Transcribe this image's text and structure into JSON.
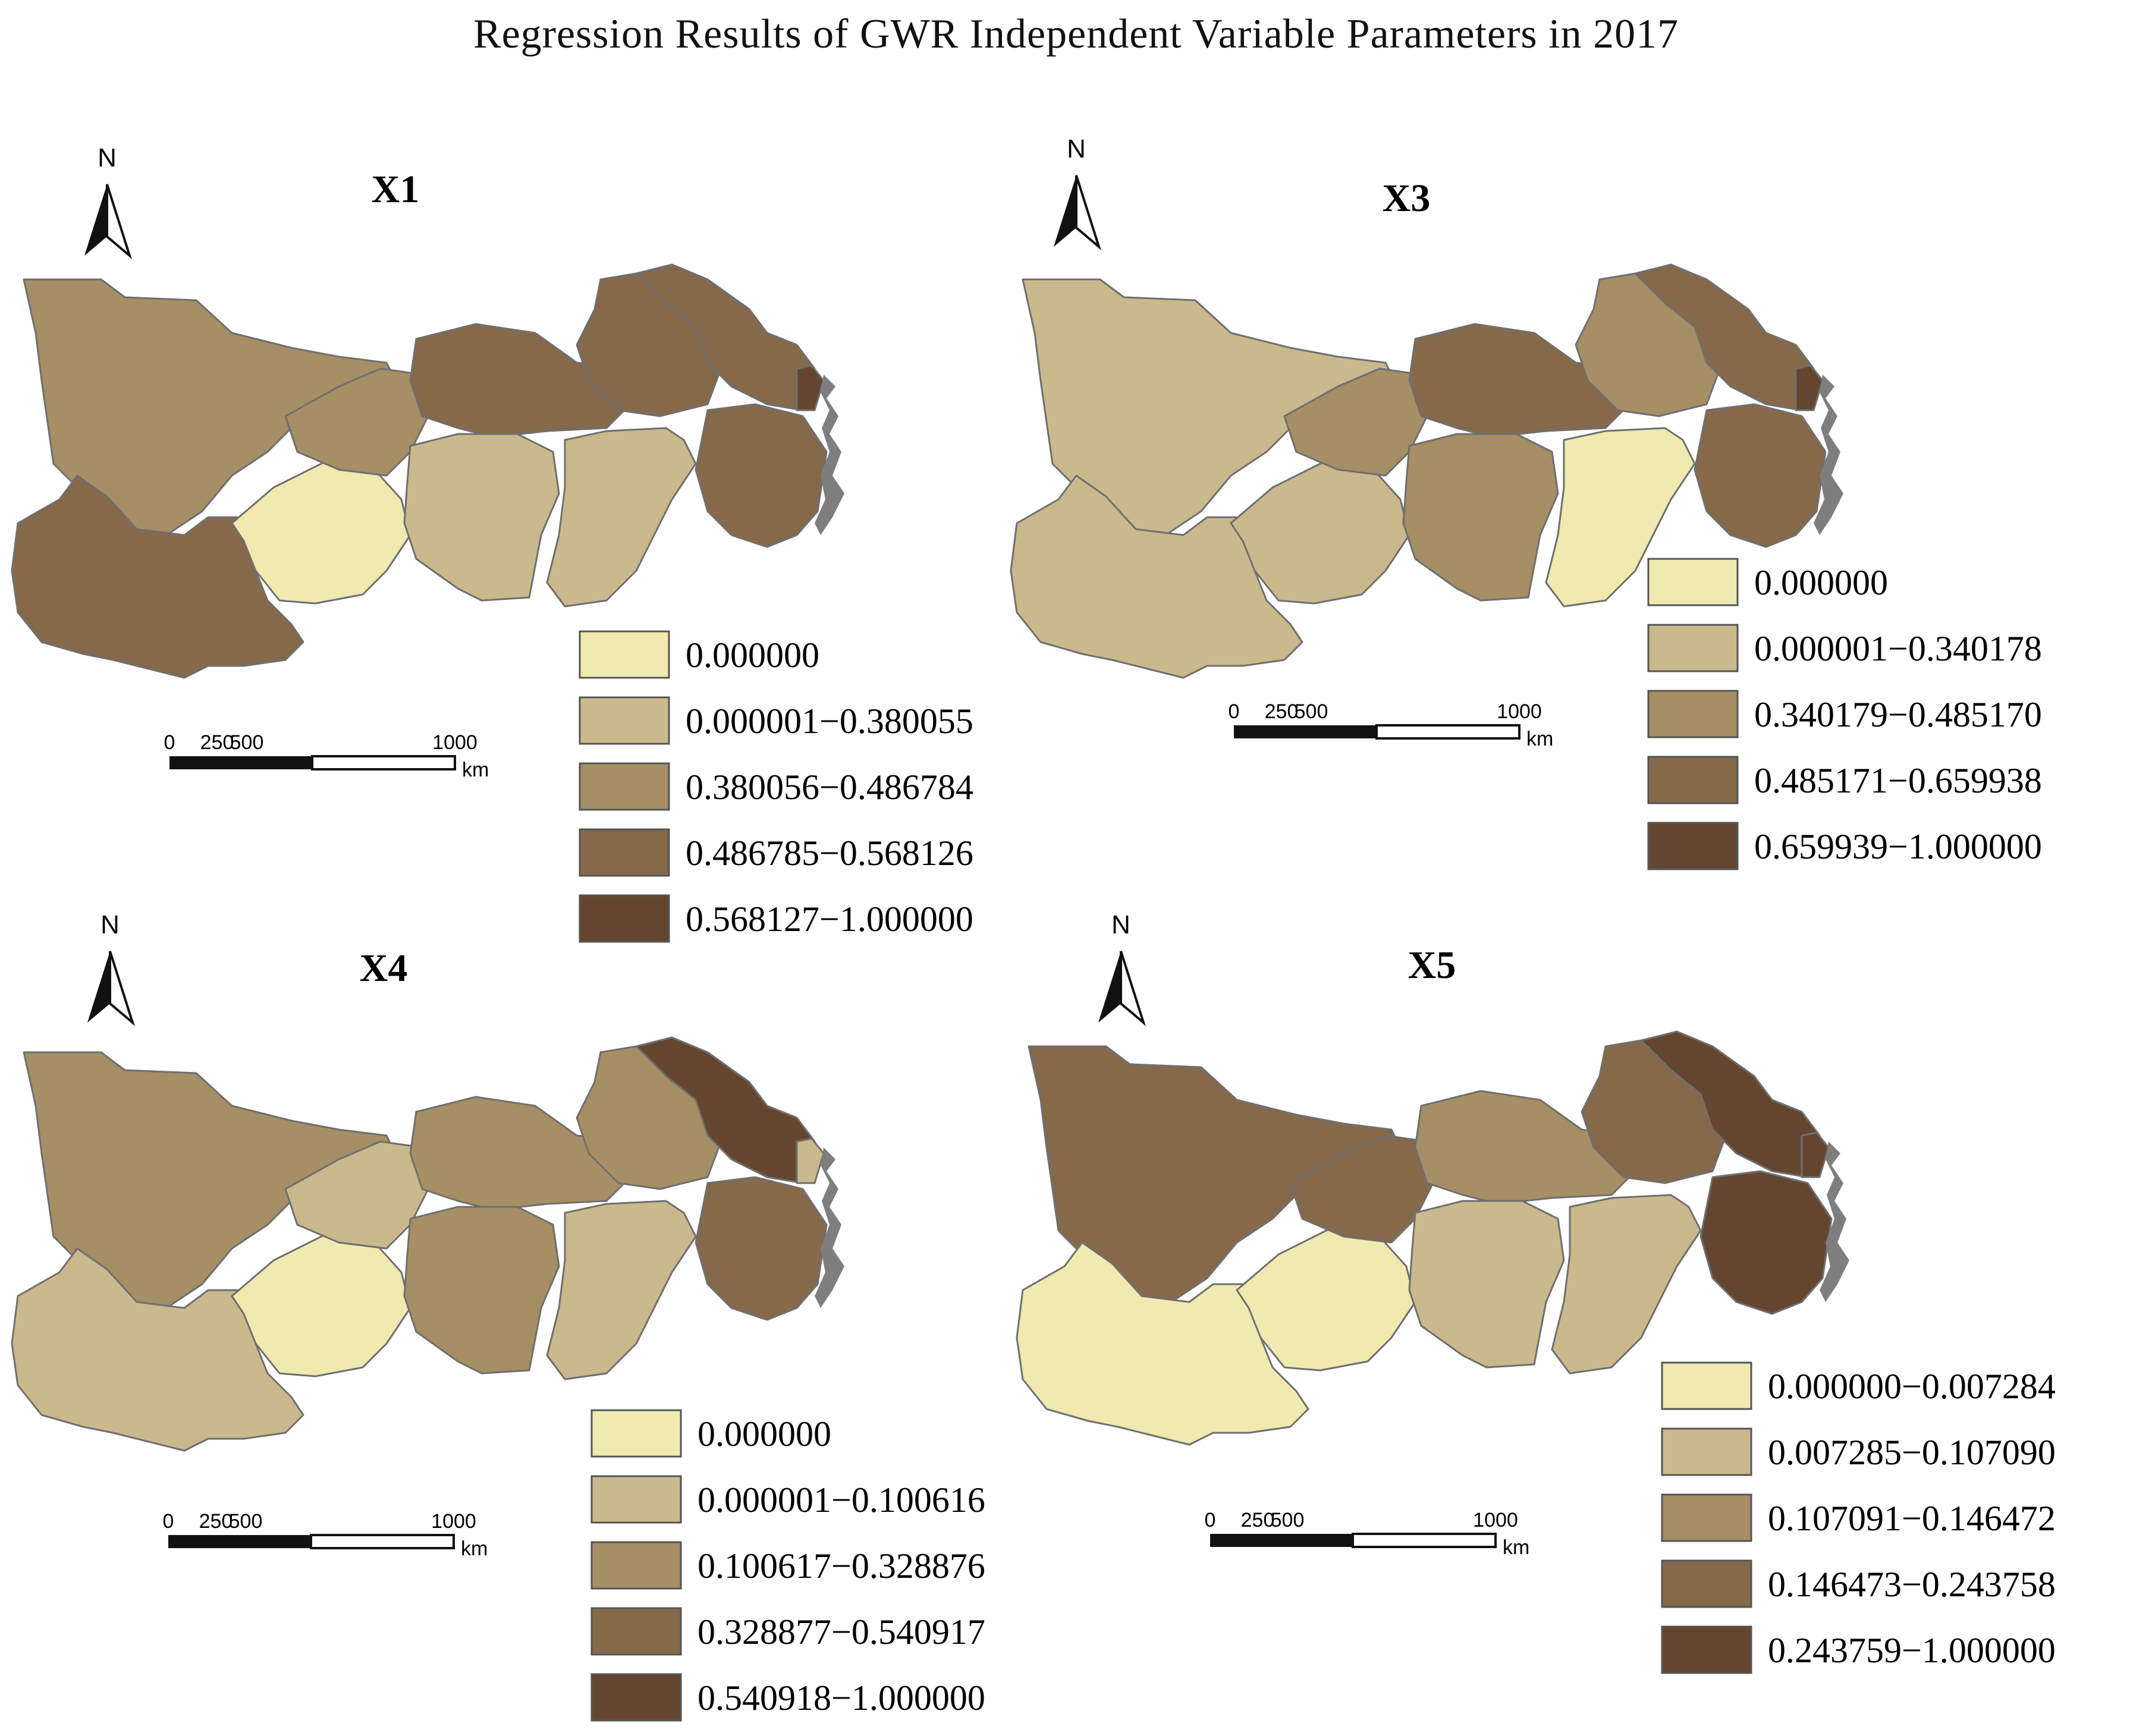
{
  "title": "Regression Results of GWR Independent Variable Parameters in 2017",
  "north_label": "N",
  "scale_bar": {
    "ticks": [
      "0",
      "250",
      "500",
      "1000"
    ],
    "unit": "km"
  },
  "panels": [
    {
      "name": "X1",
      "legend": [
        "0.000000",
        "0.000001−0.380055",
        "0.380056−0.486784",
        "0.486785−0.568126",
        "0.568127−1.000000"
      ],
      "classes": [
        2,
        3,
        0,
        2,
        3,
        1,
        3,
        3,
        4,
        1,
        3
      ]
    },
    {
      "name": "X3",
      "legend": [
        "0.000000",
        "0.000001−0.340178",
        "0.340179−0.485170",
        "0.485171−0.659938",
        "0.659939−1.000000"
      ],
      "classes": [
        1,
        1,
        1,
        2,
        3,
        2,
        2,
        3,
        4,
        0,
        3
      ]
    },
    {
      "name": "X4",
      "legend": [
        "0.000000",
        "0.000001−0.100616",
        "0.100617−0.328876",
        "0.328877−0.540917",
        "0.540918−1.000000"
      ],
      "classes": [
        2,
        1,
        0,
        1,
        2,
        2,
        2,
        4,
        1,
        1,
        3
      ]
    },
    {
      "name": "X5",
      "legend": [
        "0.000000−0.007284",
        "0.007285−0.107090",
        "0.107091−0.146472",
        "0.146473−0.243758",
        "0.243759−1.000000"
      ],
      "classes": [
        3,
        0,
        0,
        3,
        2,
        1,
        3,
        4,
        4,
        1,
        4
      ]
    }
  ],
  "palette": [
    "#f0e9b0",
    "#cab98c",
    "#a68e65",
    "#85694a",
    "#644630"
  ]
}
